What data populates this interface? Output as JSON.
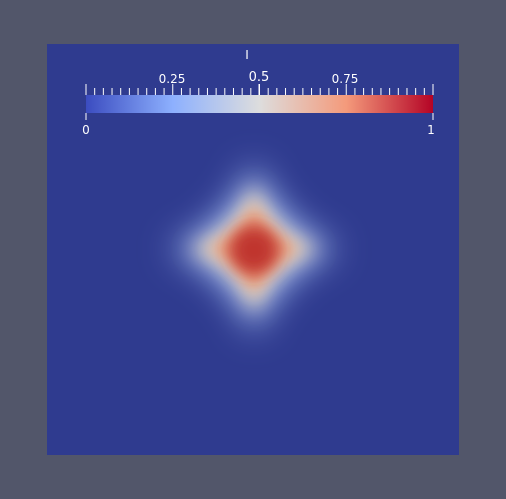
{
  "viewport": {
    "background_color": "#52566a",
    "render_background_color": "#2f3b8f"
  },
  "colorbar": {
    "title": "I",
    "colormap": "Cool to Warm",
    "colors": [
      "#3b4cc0",
      "#8db0fe",
      "#dddddd",
      "#f49a7b",
      "#b40426"
    ],
    "range": [
      0,
      1
    ],
    "min_label": "0",
    "max_label": "1",
    "tick_labels": [
      "0.25",
      "0.5",
      "0.75"
    ],
    "orientation": "horizontal",
    "placement": "top"
  },
  "scalar_field": {
    "shape": "four-pointed star",
    "peak_value": 0.9,
    "peak_color": "#c0352e"
  }
}
